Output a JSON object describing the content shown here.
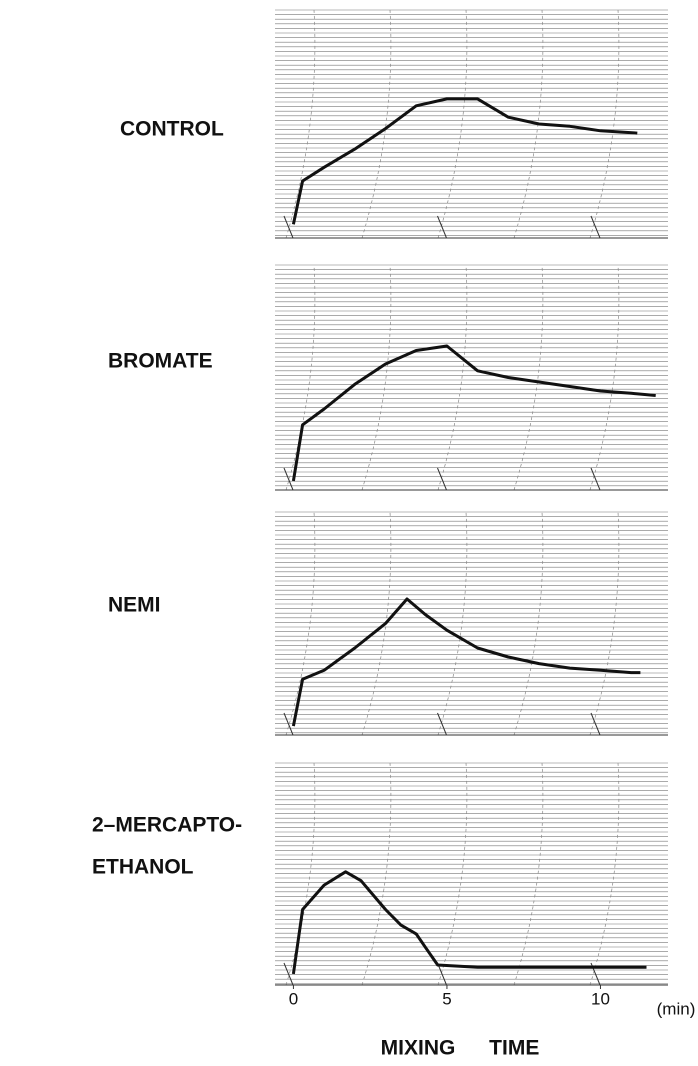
{
  "chart_data": [
    {
      "type": "line",
      "title": [
        "CONTROL"
      ],
      "xlim": [
        -0.6,
        12.2
      ],
      "ylim": [
        0,
        100
      ],
      "x": [
        0,
        0.3,
        1,
        2,
        3,
        4,
        5,
        6,
        7,
        8,
        9,
        10,
        11.2
      ],
      "values": [
        6,
        25,
        31,
        39,
        48,
        58,
        61,
        61,
        53,
        50,
        49,
        47,
        46
      ],
      "color": "#111111"
    },
    {
      "type": "line",
      "title": [
        "BROMATE"
      ],
      "xlim": [
        -0.6,
        12.2
      ],
      "ylim": [
        0,
        100
      ],
      "x": [
        0,
        0.3,
        1,
        2,
        3,
        4,
        5,
        6,
        7,
        8,
        9,
        10,
        11,
        11.8
      ],
      "values": [
        4,
        29,
        36,
        47,
        56,
        62,
        64,
        53,
        50,
        48,
        46,
        44,
        43,
        42
      ],
      "color": "#111111"
    },
    {
      "type": "line",
      "title": [
        "NEMI"
      ],
      "xlim": [
        -0.6,
        12.2
      ],
      "ylim": [
        0,
        100
      ],
      "x": [
        0,
        0.3,
        1,
        2,
        3,
        3.7,
        4.3,
        5,
        6,
        7,
        8,
        9,
        10,
        11,
        11.3
      ],
      "values": [
        4,
        25,
        29,
        39,
        50,
        61,
        54,
        47,
        39,
        35,
        32,
        30,
        29,
        28,
        28
      ],
      "color": "#111111"
    },
    {
      "type": "line",
      "title": [
        "2–MERCAPTO-",
        "ETHANOL"
      ],
      "xlim": [
        -0.6,
        12.2
      ],
      "ylim": [
        0,
        100
      ],
      "x": [
        0,
        0.3,
        1,
        1.7,
        2.2,
        3,
        3.5,
        4,
        4.3,
        4.7,
        6,
        8,
        10,
        11.5
      ],
      "values": [
        5,
        34,
        45,
        51,
        47,
        34,
        27,
        23,
        17,
        9,
        8,
        8,
        8,
        8
      ],
      "color": "#111111",
      "xticks": [
        0,
        5,
        10
      ],
      "x_unit": "(min)",
      "xlabel": "MIXING TIME"
    }
  ]
}
